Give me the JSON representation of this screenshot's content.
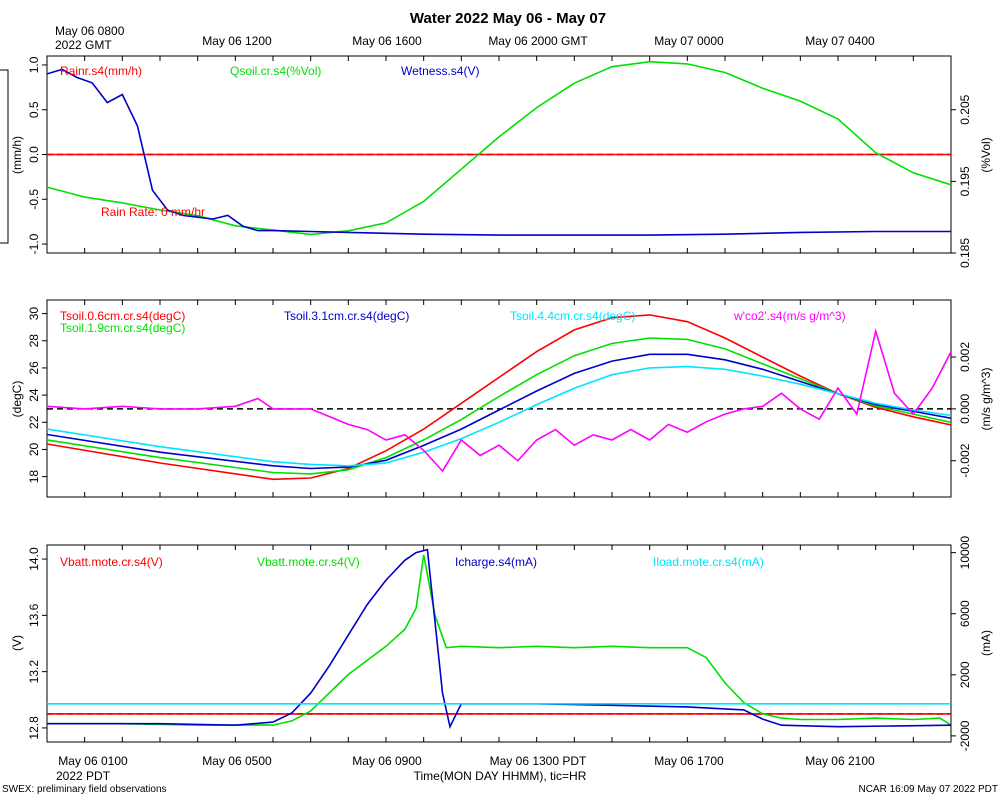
{
  "title": "Water 2022 May 06 - May 07",
  "top_axis": {
    "start_label_line1": "May 06 0800",
    "start_label_line2": "2022 GMT",
    "ticks": [
      "May 06 1200",
      "May 06 1600",
      "May 06 2000 GMT",
      "May 07 0000",
      "May 07 0400"
    ]
  },
  "bottom_axis": {
    "ticks": [
      "May 06 0100",
      "May 06 0500",
      "May 06 0900",
      "May 06 1300 PDT",
      "May 06 1700",
      "May 06 2100"
    ],
    "start_label_line2": "2022 PDT",
    "xlabel": "Time(MON DAY HHMM), tic=HR"
  },
  "footer": {
    "left": "SWEX: preliminary field observations",
    "right": "NCAR 16:09 May 07 2022 PDT"
  },
  "chart_data": [
    {
      "type": "line",
      "panel": "water",
      "xlim_hours_pdt": [
        0,
        24
      ],
      "left_ylabel": "(mm/h)",
      "right_ylabel": "(%Vol)",
      "left_ylim": [
        -1.1,
        1.1
      ],
      "right_ylim": [
        0.185,
        0.2125
      ],
      "left_ticks": [
        "1.0",
        "0.5",
        "0.0",
        "-0.5",
        "-1.0"
      ],
      "right_ticks": [
        "0.205",
        "0.195",
        "0.185"
      ],
      "annotation": "Rain Rate: 0 mm/hr",
      "series": [
        {
          "name": "Rainr.s4(mm/h)",
          "color": "#ff0000",
          "axis": "left",
          "x": [
            0,
            24
          ],
          "y": [
            0,
            0
          ]
        },
        {
          "name": "Qsoil.cr.s4(%Vol)",
          "color": "#00e000",
          "axis": "right",
          "x": [
            0,
            1,
            2,
            3,
            4,
            5,
            6,
            7,
            8,
            9,
            10,
            11,
            12,
            13,
            14,
            15,
            16,
            17,
            18,
            19,
            20,
            21,
            22,
            23,
            24
          ],
          "y": [
            0.1942,
            0.1928,
            0.192,
            0.191,
            0.1902,
            0.1888,
            0.1882,
            0.1876,
            0.1881,
            0.1892,
            0.1922,
            0.1967,
            0.2012,
            0.2053,
            0.2087,
            0.211,
            0.2117,
            0.2114,
            0.2102,
            0.208,
            0.2062,
            0.2037,
            0.199,
            0.1962,
            0.1945
          ]
        },
        {
          "name": "Wetness.s4(V)",
          "color": "#0000cc",
          "axis": "left",
          "x": [
            0,
            0.4,
            0.8,
            1.2,
            1.6,
            2.0,
            2.4,
            2.8,
            3.2,
            3.6,
            4.0,
            4.4,
            4.8,
            5.2,
            5.6,
            6,
            7,
            8,
            9,
            10,
            12,
            14,
            16,
            18,
            20,
            22,
            24
          ],
          "y": [
            0.9,
            0.95,
            0.86,
            0.8,
            0.58,
            0.67,
            0.32,
            -0.4,
            -0.62,
            -0.68,
            -0.7,
            -0.72,
            -0.68,
            -0.8,
            -0.85,
            -0.85,
            -0.86,
            -0.87,
            -0.88,
            -0.89,
            -0.9,
            -0.9,
            -0.9,
            -0.89,
            -0.87,
            -0.86,
            -0.86
          ]
        }
      ]
    },
    {
      "type": "line",
      "panel": "soil-temperature",
      "xlim_hours_pdt": [
        0,
        24
      ],
      "left_ylabel": "(degC)",
      "right_ylabel": "(m/s g/m^3)",
      "left_ylim": [
        16.5,
        31
      ],
      "right_ylim": [
        -0.0034,
        0.0042
      ],
      "left_ticks": [
        "30",
        "28",
        "26",
        "24",
        "22",
        "20",
        "18"
      ],
      "right_ticks": [
        "0.002",
        "0.000",
        "-0.002"
      ],
      "series": [
        {
          "name": "Tsoil.0.6cm.cr.s4(degC)",
          "color": "#ff0000",
          "axis": "left",
          "x": [
            0,
            3,
            6,
            7,
            8,
            9,
            10,
            11,
            12,
            13,
            14,
            15,
            16,
            17,
            18,
            19,
            20,
            21,
            22,
            23,
            24
          ],
          "y": [
            20.4,
            19.0,
            17.8,
            17.9,
            18.6,
            19.9,
            21.5,
            23.4,
            25.3,
            27.2,
            28.8,
            29.7,
            29.9,
            29.4,
            28.2,
            26.8,
            25.4,
            24.1,
            23.1,
            22.4,
            21.8
          ]
        },
        {
          "name": "Tsoil.1.9cm.cr.s4(degC)",
          "color": "#00e000",
          "axis": "left",
          "x": [
            0,
            3,
            6,
            7,
            8,
            9,
            10,
            11,
            12,
            13,
            14,
            15,
            16,
            17,
            18,
            19,
            20,
            21,
            22,
            23,
            24
          ],
          "y": [
            20.7,
            19.4,
            18.3,
            18.2,
            18.5,
            19.4,
            20.7,
            22.2,
            23.9,
            25.5,
            26.9,
            27.8,
            28.2,
            28.1,
            27.4,
            26.3,
            25.2,
            24.1,
            23.2,
            22.6,
            22.0
          ]
        },
        {
          "name": "Tsoil.3.1cm.cr.s4(degC)",
          "color": "#0000cc",
          "axis": "left",
          "x": [
            0,
            3,
            6,
            7,
            8,
            9,
            10,
            11,
            12,
            13,
            14,
            15,
            16,
            17,
            18,
            19,
            20,
            21,
            22,
            23,
            24
          ],
          "y": [
            21.1,
            19.8,
            18.8,
            18.6,
            18.7,
            19.2,
            20.3,
            21.5,
            22.9,
            24.3,
            25.6,
            26.5,
            27.0,
            27.0,
            26.6,
            25.9,
            25.0,
            24.1,
            23.3,
            22.8,
            22.3
          ]
        },
        {
          "name": "Tsoil.4.4cm.cr.s4(degC)",
          "color": "#00e5ff",
          "axis": "left",
          "x": [
            0,
            3,
            6,
            7,
            8,
            9,
            10,
            11,
            12,
            13,
            14,
            15,
            16,
            17,
            18,
            19,
            20,
            21,
            22,
            23,
            24
          ],
          "y": [
            21.5,
            20.2,
            19.1,
            18.9,
            18.8,
            19.0,
            19.8,
            20.8,
            22.0,
            23.3,
            24.5,
            25.5,
            26.0,
            26.1,
            25.9,
            25.4,
            24.8,
            24.1,
            23.4,
            22.9,
            22.5
          ]
        },
        {
          "name": "w'co2'.s4(m/s g/m^3)",
          "color": "#ff00ff",
          "axis": "right",
          "x": [
            0,
            1,
            2,
            3,
            4,
            5,
            5.6,
            6,
            7,
            7.5,
            8,
            8.5,
            9,
            9.5,
            10,
            10.5,
            11,
            11.5,
            12,
            12.5,
            13,
            13.5,
            14,
            14.5,
            15,
            15.5,
            16,
            16.5,
            17,
            17.5,
            18,
            18.5,
            19,
            19.5,
            20,
            20.5,
            21,
            21.5,
            22,
            22.5,
            23,
            23.5,
            24
          ],
          "y": [
            0.0001,
            0.0,
            0.0001,
            0.0,
            0.0,
            0.0001,
            0.0004,
            0.0,
            0.0,
            -0.0003,
            -0.0006,
            -0.0008,
            -0.0012,
            -0.001,
            -0.0016,
            -0.0024,
            -0.0012,
            -0.0018,
            -0.0014,
            -0.002,
            -0.0012,
            -0.0008,
            -0.0014,
            -0.001,
            -0.0012,
            -0.0008,
            -0.0012,
            -0.0006,
            -0.0009,
            -0.0005,
            -0.0002,
            0.0,
            0.0001,
            0.0006,
            0.0,
            -0.0004,
            0.0008,
            -0.0002,
            0.003,
            0.0006,
            -0.0002,
            0.0008,
            0.0022
          ]
        }
      ]
    },
    {
      "type": "line",
      "panel": "power",
      "xlim_hours_pdt": [
        0,
        24
      ],
      "left_ylabel": "(V)",
      "right_ylabel": "(mA)",
      "left_ylim": [
        12.7,
        14.1
      ],
      "right_ylim": [
        -2400,
        10500
      ],
      "left_ticks": [
        "14.0",
        "13.6",
        "13.2",
        "12.8"
      ],
      "right_ticks": [
        "10000",
        "6000",
        "2000",
        "-2000"
      ],
      "series": [
        {
          "name": "Vbatt.mote.cr.s4(V)",
          "color": "#ff0000",
          "axis": "left",
          "x": [
            0,
            24
          ],
          "y": [
            12.9,
            12.9
          ]
        },
        {
          "name": "Vbatt.mote.cr.s4(V)",
          "color": "#00e000",
          "axis": "left",
          "x": [
            0,
            2,
            4,
            5,
            6,
            6.5,
            7,
            7.5,
            8,
            8.5,
            9,
            9.5,
            9.8,
            10.0,
            10.3,
            10.6,
            11,
            12,
            13,
            14,
            15,
            16,
            17,
            17.5,
            18,
            18.5,
            19,
            19.5,
            20,
            21,
            22,
            23,
            23.7,
            24
          ],
          "y": [
            12.83,
            12.83,
            12.82,
            12.82,
            12.82,
            12.85,
            12.92,
            13.05,
            13.18,
            13.28,
            13.38,
            13.5,
            13.65,
            14.03,
            13.6,
            13.37,
            13.38,
            13.37,
            13.38,
            13.37,
            13.38,
            13.37,
            13.37,
            13.3,
            13.12,
            12.98,
            12.9,
            12.87,
            12.86,
            12.86,
            12.87,
            12.86,
            12.87,
            12.82
          ]
        },
        {
          "name": "Icharge.s4(mA)",
          "color": "#0000cc",
          "axis": "right",
          "x": [
            0,
            3,
            5,
            6,
            6.5,
            7,
            7.5,
            8,
            8.5,
            9,
            9.5,
            9.8,
            10.1,
            10.5,
            10.7,
            11,
            13,
            15,
            17,
            18.5,
            19,
            19.5,
            21,
            24
          ],
          "y": [
            -1200,
            -1200,
            -1300,
            -1100,
            -500,
            800,
            2600,
            4600,
            6600,
            8200,
            9500,
            10000,
            10200,
            800,
            -1400,
            100,
            100,
            0,
            -100,
            -300,
            -900,
            -1300,
            -1400,
            -1300
          ]
        },
        {
          "name": "Iload.mote.cr.s4(mA)",
          "color": "#00e5ff",
          "axis": "right",
          "x": [
            0,
            24
          ],
          "y": [
            100,
            100
          ]
        }
      ]
    }
  ]
}
